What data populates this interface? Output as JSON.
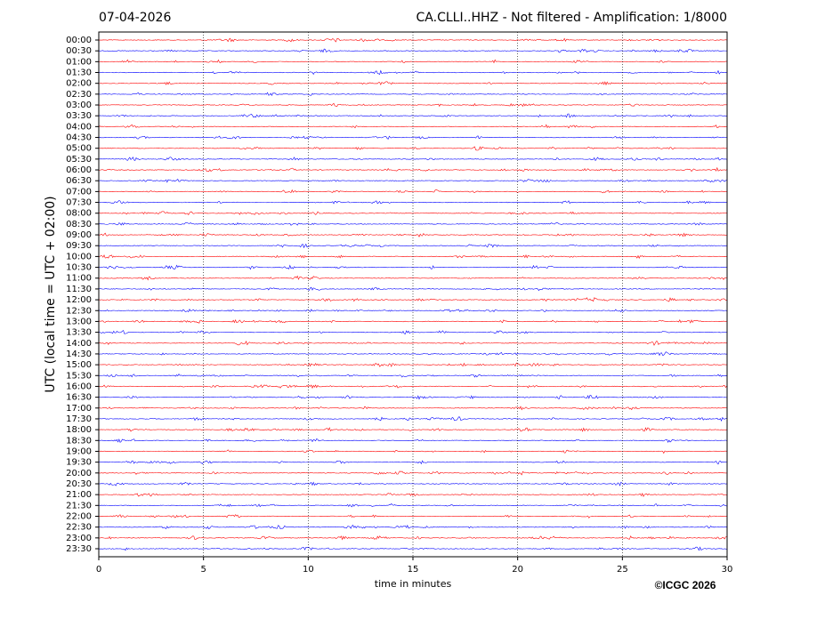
{
  "chart_data": {
    "type": "helicorder",
    "date": "07-04-2026",
    "title": "CA.CLLI..HHZ - Not filtered - Amplification: 1/8000",
    "y_label": "UTC (local time = UTC + 02:00)",
    "x_label": "time in minutes",
    "credit": "©ICGC 2026",
    "categories": [
      "00:00",
      "00:30",
      "01:00",
      "01:30",
      "02:00",
      "02:30",
      "03:00",
      "03:30",
      "04:00",
      "04:30",
      "05:00",
      "05:30",
      "06:00",
      "06:30",
      "07:00",
      "07:30",
      "08:00",
      "08:30",
      "09:00",
      "09:30",
      "10:00",
      "10:30",
      "11:00",
      "11:30",
      "12:00",
      "12:30",
      "13:00",
      "13:30",
      "14:00",
      "14:30",
      "15:00",
      "15:30",
      "16:00",
      "16:30",
      "17:00",
      "17:30",
      "18:00",
      "18:30",
      "19:00",
      "19:30",
      "20:00",
      "20:30",
      "21:00",
      "21:30",
      "22:00",
      "22:30",
      "23:00",
      "23:30"
    ],
    "colors": [
      "#ff0000",
      "#0000ff"
    ],
    "xlim": [
      0,
      30
    ],
    "xticks": [
      0,
      5,
      10,
      15,
      20,
      25,
      30
    ],
    "grid": true
  }
}
